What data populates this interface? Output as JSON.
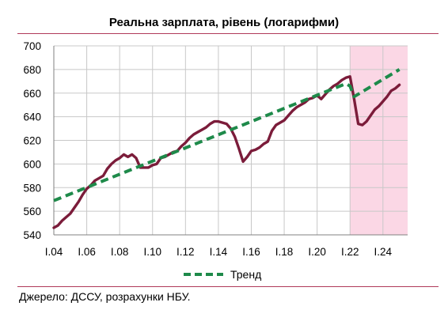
{
  "chart_data": {
    "type": "line",
    "title": "Реальна зарплата, рівень (логарифми)",
    "ylim": [
      540,
      700
    ],
    "yticks": [
      540,
      560,
      580,
      600,
      620,
      640,
      660,
      680,
      700
    ],
    "xlim": [
      2004,
      2025.5
    ],
    "xticks": [
      {
        "value": 2004,
        "label": "I.04"
      },
      {
        "value": 2006,
        "label": "I.06"
      },
      {
        "value": 2008,
        "label": "I.08"
      },
      {
        "value": 2010,
        "label": "I.10"
      },
      {
        "value": 2012,
        "label": "I.12"
      },
      {
        "value": 2014,
        "label": "I.14"
      },
      {
        "value": 2016,
        "label": "I.16"
      },
      {
        "value": 2018,
        "label": "I.18"
      },
      {
        "value": 2020,
        "label": "I.20"
      },
      {
        "value": 2022,
        "label": "I.22"
      },
      {
        "value": 2024,
        "label": "I.24"
      }
    ],
    "grid": true,
    "shaded_region": {
      "from": 2022,
      "to": 2025.5,
      "color": "#fbd7e5"
    },
    "series": [
      {
        "name": "",
        "color": "#7b1c3a",
        "style": "solid",
        "points": [
          [
            2004.0,
            546
          ],
          [
            2004.25,
            548
          ],
          [
            2004.5,
            552
          ],
          [
            2004.75,
            555
          ],
          [
            2005.0,
            558
          ],
          [
            2005.25,
            563
          ],
          [
            2005.5,
            568
          ],
          [
            2005.75,
            574
          ],
          [
            2006.0,
            579
          ],
          [
            2006.25,
            582
          ],
          [
            2006.5,
            586
          ],
          [
            2006.75,
            588
          ],
          [
            2007.0,
            590
          ],
          [
            2007.25,
            596
          ],
          [
            2007.5,
            600
          ],
          [
            2007.75,
            603
          ],
          [
            2008.0,
            605
          ],
          [
            2008.25,
            608
          ],
          [
            2008.5,
            606
          ],
          [
            2008.75,
            608
          ],
          [
            2009.0,
            605
          ],
          [
            2009.25,
            597
          ],
          [
            2009.5,
            597
          ],
          [
            2009.75,
            597
          ],
          [
            2010.0,
            599
          ],
          [
            2010.25,
            600
          ],
          [
            2010.5,
            605
          ],
          [
            2010.75,
            606
          ],
          [
            2011.0,
            608
          ],
          [
            2011.25,
            610
          ],
          [
            2011.5,
            611
          ],
          [
            2011.75,
            615
          ],
          [
            2012.0,
            618
          ],
          [
            2012.25,
            622
          ],
          [
            2012.5,
            625
          ],
          [
            2012.75,
            627
          ],
          [
            2013.0,
            629
          ],
          [
            2013.25,
            631
          ],
          [
            2013.5,
            634
          ],
          [
            2013.75,
            636
          ],
          [
            2014.0,
            636
          ],
          [
            2014.25,
            635
          ],
          [
            2014.5,
            634
          ],
          [
            2014.75,
            630
          ],
          [
            2015.0,
            623
          ],
          [
            2015.25,
            613
          ],
          [
            2015.5,
            602
          ],
          [
            2015.75,
            606
          ],
          [
            2016.0,
            611
          ],
          [
            2016.25,
            612
          ],
          [
            2016.5,
            614
          ],
          [
            2016.75,
            617
          ],
          [
            2017.0,
            619
          ],
          [
            2017.25,
            628
          ],
          [
            2017.5,
            633
          ],
          [
            2017.75,
            635
          ],
          [
            2018.0,
            637
          ],
          [
            2018.25,
            641
          ],
          [
            2018.5,
            645
          ],
          [
            2018.75,
            648
          ],
          [
            2019.0,
            650
          ],
          [
            2019.25,
            652
          ],
          [
            2019.5,
            655
          ],
          [
            2019.75,
            656
          ],
          [
            2020.0,
            658
          ],
          [
            2020.25,
            655
          ],
          [
            2020.5,
            659
          ],
          [
            2020.75,
            663
          ],
          [
            2021.0,
            666
          ],
          [
            2021.25,
            668
          ],
          [
            2021.5,
            671
          ],
          [
            2021.75,
            673
          ],
          [
            2022.0,
            674
          ],
          [
            2022.25,
            655
          ],
          [
            2022.5,
            634
          ],
          [
            2022.75,
            633
          ],
          [
            2023.0,
            636
          ],
          [
            2023.25,
            641
          ],
          [
            2023.5,
            646
          ],
          [
            2023.75,
            649
          ],
          [
            2024.0,
            653
          ],
          [
            2024.25,
            657
          ],
          [
            2024.5,
            662
          ],
          [
            2024.75,
            664
          ],
          [
            2025.0,
            667
          ]
        ]
      },
      {
        "name": "Тренд",
        "color": "#1e8a4a",
        "style": "dashed",
        "points": [
          [
            2004.0,
            569
          ],
          [
            2021.75,
            668
          ],
          [
            2022.0,
            666
          ],
          [
            2022.25,
            657
          ],
          [
            2025.0,
            680
          ]
        ]
      }
    ],
    "legend": {
      "position": "bottom-center",
      "items": [
        "Тренд"
      ]
    }
  },
  "source_note": "Джерело: ДССУ, розрахунки НБУ."
}
